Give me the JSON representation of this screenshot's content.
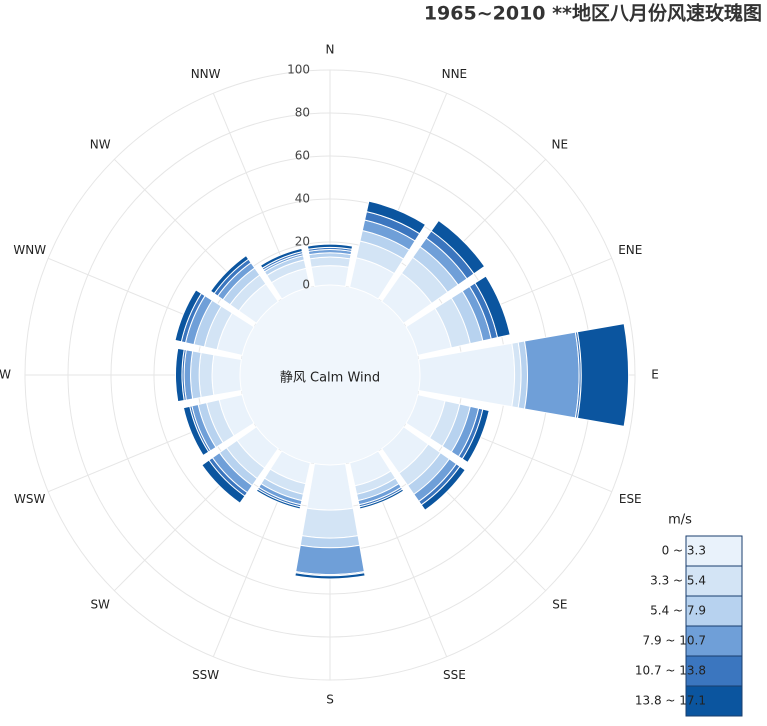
{
  "chart_data": {
    "type": "windrose",
    "title": "1965~2010  **地区八月份风速玫瑰图",
    "calm_label": "静风 Calm Wind",
    "legend_title": "m/s",
    "categories": [
      "N",
      "NNE",
      "NE",
      "ENE",
      "E",
      "ESE",
      "SE",
      "SSE",
      "S",
      "SSW",
      "SW",
      "WSW",
      "W",
      "WNW",
      "NW",
      "NNW"
    ],
    "series": [
      {
        "name": "0 ~ 3.3",
        "color": "#e9f2fb",
        "values": [
          9,
          14,
          16,
          16,
          44,
          13,
          14,
          11,
          21,
          10,
          11,
          11,
          13,
          12,
          10,
          9
        ]
      },
      {
        "name": "3.3 ~ 5.4",
        "color": "#d3e4f5",
        "values": [
          4,
          8,
          9,
          9,
          3,
          7,
          7,
          4,
          13,
          5,
          6,
          6,
          6,
          6,
          5,
          4
        ]
      },
      {
        "name": "5.4 ~ 7.9",
        "color": "#b7d2ef",
        "values": [
          2,
          5,
          6,
          6,
          3,
          5,
          5,
          3,
          4.5,
          3,
          4,
          4,
          4,
          5,
          4,
          2
        ]
      },
      {
        "name": "7.9 ~ 10.7",
        "color": "#6f9fd8",
        "values": [
          1.5,
          5,
          5,
          4,
          24,
          4,
          4,
          2,
          12.5,
          2,
          4,
          3,
          3,
          4,
          3,
          1
        ]
      },
      {
        "name": "10.7 ~ 13.8",
        "color": "#3b76bf",
        "values": [
          1,
          4,
          4,
          3,
          1,
          2,
          2,
          1,
          0.5,
          1,
          2,
          1,
          1,
          2,
          2,
          1
        ]
      },
      {
        "name": "13.8 ~ 17.1",
        "color": "#0b559f",
        "values": [
          1.5,
          5,
          6,
          6,
          22,
          3,
          3,
          1,
          1.5,
          1,
          4,
          3,
          3,
          3,
          2,
          1.5
        ]
      }
    ],
    "rlim": [
      0,
      100
    ],
    "rticks": [
      0,
      20,
      40,
      60,
      80,
      100
    ],
    "grid": true
  }
}
